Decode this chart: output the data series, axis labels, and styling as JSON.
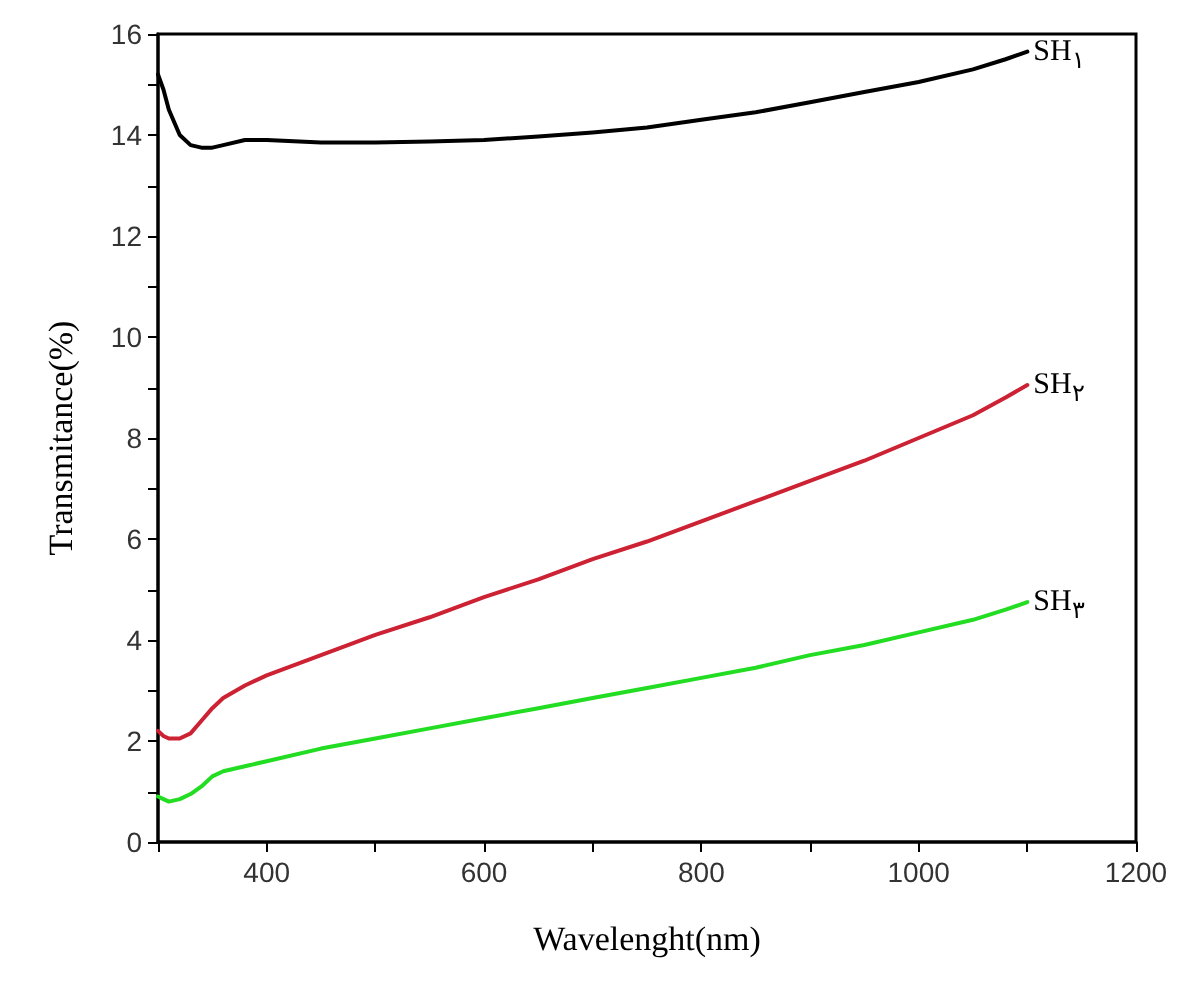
{
  "chart_data": {
    "type": "line",
    "xlabel": "Wavelenght(nm)",
    "ylabel": "Transmitance(%)",
    "x": [
      300,
      305,
      310,
      320,
      330,
      340,
      350,
      360,
      380,
      400,
      450,
      500,
      550,
      600,
      650,
      700,
      750,
      800,
      850,
      900,
      950,
      1000,
      1050,
      1080,
      1100
    ],
    "series": [
      {
        "name": "SH$_{۱}$",
        "color": "#000000",
        "values": [
          15.2,
          14.9,
          14.5,
          14.0,
          13.8,
          13.75,
          13.75,
          13.8,
          13.9,
          13.9,
          13.85,
          13.85,
          13.87,
          13.9,
          13.97,
          14.05,
          14.15,
          14.3,
          14.45,
          14.65,
          14.85,
          15.05,
          15.3,
          15.5,
          15.65
        ]
      },
      {
        "name": "SH$_{۲}$",
        "color": "#cc2233",
        "values": [
          2.2,
          2.1,
          2.05,
          2.05,
          2.15,
          2.4,
          2.65,
          2.85,
          3.1,
          3.3,
          3.7,
          4.1,
          4.45,
          4.85,
          5.2,
          5.6,
          5.95,
          6.35,
          6.75,
          7.15,
          7.55,
          8.0,
          8.45,
          8.8,
          9.05
        ]
      },
      {
        "name": "SH$_{۳}$",
        "color": "#22dd22",
        "values": [
          0.9,
          0.85,
          0.8,
          0.85,
          0.95,
          1.1,
          1.3,
          1.4,
          1.5,
          1.6,
          1.85,
          2.05,
          2.25,
          2.45,
          2.65,
          2.85,
          3.05,
          3.25,
          3.45,
          3.7,
          3.9,
          4.15,
          4.4,
          4.6,
          4.75
        ]
      }
    ],
    "xlim": [
      300,
      1200
    ],
    "xticks": [
      400,
      600,
      800,
      1000,
      1200
    ],
    "ylim": [
      0,
      16
    ],
    "yticks": [
      0,
      2,
      4,
      6,
      8,
      10,
      12,
      14,
      16
    ],
    "grid": false,
    "legend": false,
    "marker": "none",
    "line_style": "solid"
  }
}
